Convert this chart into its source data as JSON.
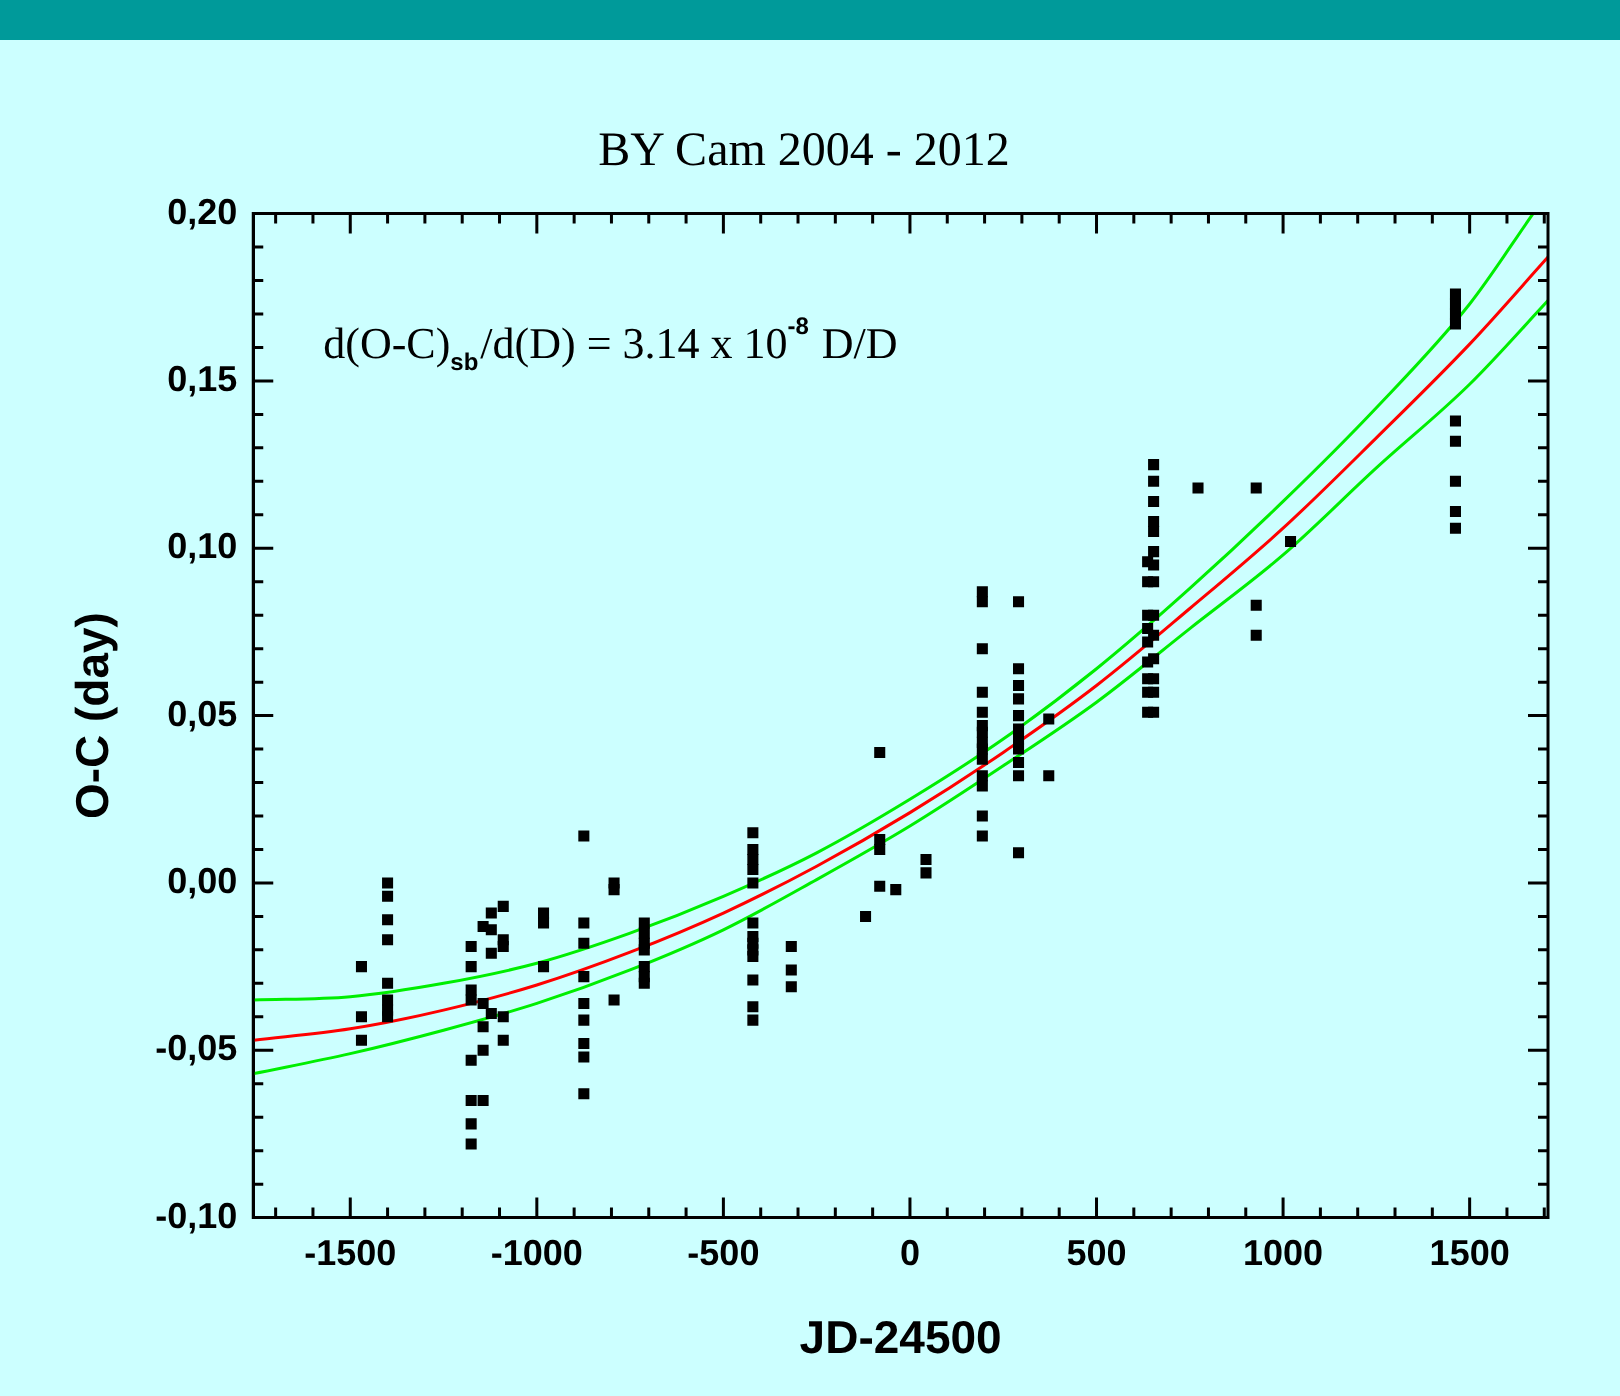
{
  "chart_data": {
    "type": "scatter",
    "title": "BY Cam 2004 - 2012",
    "xlabel": "JD-24500",
    "ylabel": "O-C (day)",
    "annotations": [
      "d(O-C)$_{sb}$/d(D) = 3.14 x 10$^{-8}$ D/D"
    ],
    "xlim": [
      -1760,
      1710
    ],
    "xticks": [
      {
        "value": -1700,
        "label": null
      },
      {
        "value": -1600,
        "label": null
      },
      -1500,
      {
        "value": -1400,
        "label": null
      },
      {
        "value": -1300,
        "label": null
      },
      {
        "value": -1200,
        "label": null
      },
      {
        "value": -1100,
        "label": null
      },
      -1000,
      {
        "value": -900,
        "label": null
      },
      {
        "value": -800,
        "label": null
      },
      {
        "value": -700,
        "label": null
      },
      {
        "value": -600,
        "label": null
      },
      -500,
      {
        "value": -400,
        "label": null
      },
      {
        "value": -300,
        "label": null
      },
      {
        "value": -200,
        "label": null
      },
      {
        "value": -100,
        "label": null
      },
      0,
      {
        "value": 100,
        "label": null
      },
      {
        "value": 200,
        "label": null
      },
      {
        "value": 300,
        "label": null
      },
      {
        "value": 400,
        "label": null
      },
      500,
      {
        "value": 600,
        "label": null
      },
      {
        "value": 700,
        "label": null
      },
      {
        "value": 800,
        "label": null
      },
      {
        "value": 900,
        "label": null
      },
      1000,
      {
        "value": 1100,
        "label": null
      },
      {
        "value": 1200,
        "label": null
      },
      {
        "value": 1300,
        "label": null
      },
      {
        "value": 1400,
        "label": null
      },
      1500,
      {
        "value": 1600,
        "label": null
      },
      {
        "value": 1700,
        "label": null
      }
    ],
    "ylim": [
      -0.1,
      0.2
    ],
    "yticks": [
      {
        "value": -0.1,
        "label": "-0,10"
      },
      {
        "value": -0.09,
        "label": null
      },
      {
        "value": -0.08,
        "label": null
      },
      {
        "value": -0.07,
        "label": null
      },
      {
        "value": -0.06,
        "label": null
      },
      {
        "value": -0.05,
        "label": "-0,05"
      },
      {
        "value": -0.04,
        "label": null
      },
      {
        "value": -0.03,
        "label": null
      },
      {
        "value": -0.02,
        "label": null
      },
      {
        "value": -0.01,
        "label": null
      },
      {
        "value": 0,
        "label": "0,00"
      },
      {
        "value": 0.01,
        "label": null
      },
      {
        "value": 0.02,
        "label": null
      },
      {
        "value": 0.03,
        "label": null
      },
      {
        "value": 0.04,
        "label": null
      },
      {
        "value": 0.05,
        "label": "0,05"
      },
      {
        "value": 0.06,
        "label": null
      },
      {
        "value": 0.07,
        "label": null
      },
      {
        "value": 0.08,
        "label": null
      },
      {
        "value": 0.09,
        "label": null
      },
      {
        "value": 0.1,
        "label": "0,10"
      },
      {
        "value": 0.11,
        "label": null
      },
      {
        "value": 0.12,
        "label": null
      },
      {
        "value": 0.13,
        "label": null
      },
      {
        "value": 0.14,
        "label": null
      },
      {
        "value": 0.15,
        "label": "0,15"
      },
      {
        "value": 0.16,
        "label": null
      },
      {
        "value": 0.17,
        "label": null
      },
      {
        "value": 0.18,
        "label": null
      },
      {
        "value": 0.19,
        "label": null
      },
      {
        "value": 0.2,
        "label": "0,20"
      }
    ],
    "marker": "square",
    "series": [
      {
        "color": "#000000",
        "x": [
          -1470,
          -1470,
          -1470,
          -1400,
          -1400,
          -1400,
          -1400,
          -1400,
          -1400,
          -1400,
          -1400,
          -1176,
          -1176,
          -1176,
          -1176,
          -1176,
          -1176,
          -1176,
          -1176,
          -1144,
          -1144,
          -1144,
          -1144,
          -1144,
          -1122,
          -1122,
          -1122,
          -1122,
          -1090,
          -1090,
          -1090,
          -1090,
          -1090,
          -982,
          -982,
          -982,
          -874,
          -874,
          -874,
          -874,
          -874,
          -874,
          -874,
          -874,
          -874,
          -793,
          -793,
          -793,
          -712,
          -712,
          -712,
          -712,
          -712,
          -712,
          -712,
          -421,
          -421,
          -421,
          -421,
          -421,
          -421,
          -421,
          -421,
          -421,
          -421,
          -421,
          -421,
          -421,
          -318,
          -318,
          -318,
          -119,
          -81,
          -81,
          -81,
          -81,
          -38,
          43,
          43,
          194,
          194,
          194,
          194,
          194,
          194,
          194,
          194,
          194,
          194,
          194,
          194,
          194,
          194,
          291,
          291,
          291,
          291,
          291,
          291,
          291,
          291,
          291,
          291,
          291,
          372,
          372,
          637,
          637,
          637,
          637,
          637,
          637,
          637,
          637,
          637,
          653,
          653,
          653,
          653,
          653,
          653,
          653,
          653,
          653,
          653,
          653,
          653,
          653,
          653,
          772,
          928,
          928,
          928,
          1020,
          1462,
          1462,
          1462,
          1462,
          1462,
          1462,
          1462,
          1462,
          1462
        ],
        "values": [
          -0.025,
          -0.04,
          -0.047,
          0.0,
          -0.004,
          -0.011,
          -0.017,
          -0.03,
          -0.035,
          -0.038,
          -0.04,
          -0.019,
          -0.025,
          -0.032,
          -0.035,
          -0.053,
          -0.065,
          -0.072,
          -0.078,
          -0.013,
          -0.036,
          -0.043,
          -0.05,
          -0.065,
          -0.009,
          -0.014,
          -0.021,
          -0.039,
          -0.007,
          -0.017,
          -0.019,
          -0.04,
          -0.047,
          -0.009,
          -0.012,
          -0.025,
          0.014,
          -0.012,
          -0.018,
          -0.028,
          -0.036,
          -0.041,
          -0.048,
          -0.052,
          -0.063,
          0.0,
          -0.002,
          -0.035,
          -0.012,
          -0.015,
          -0.018,
          -0.02,
          -0.025,
          -0.028,
          -0.03,
          0.015,
          0.01,
          0.007,
          0.004,
          0.0,
          -0.012,
          -0.016,
          -0.018,
          -0.02,
          -0.022,
          -0.029,
          -0.037,
          -0.041,
          -0.019,
          -0.026,
          -0.031,
          -0.01,
          0.039,
          0.013,
          0.01,
          -0.001,
          -0.002,
          0.007,
          0.003,
          0.087,
          0.084,
          0.07,
          0.057,
          0.051,
          0.047,
          0.045,
          0.042,
          0.04,
          0.037,
          0.032,
          0.029,
          0.02,
          0.014,
          0.084,
          0.064,
          0.059,
          0.055,
          0.05,
          0.046,
          0.043,
          0.04,
          0.036,
          0.032,
          0.009,
          0.049,
          0.032,
          0.096,
          0.09,
          0.08,
          0.076,
          0.072,
          0.066,
          0.061,
          0.057,
          0.051,
          0.125,
          0.12,
          0.114,
          0.108,
          0.105,
          0.099,
          0.095,
          0.09,
          0.08,
          0.074,
          0.067,
          0.061,
          0.057,
          0.051,
          0.118,
          0.118,
          0.083,
          0.074,
          0.102,
          0.176,
          0.173,
          0.17,
          0.167,
          0.138,
          0.132,
          0.12,
          0.111,
          0.106
        ]
      },
      {
        "type": "line",
        "color": "#00ee00",
        "marker": "none",
        "line_style": "solid",
        "x": [
          -1760,
          -1500,
          -1250,
          -1000,
          -750,
          -500,
          -250,
          0,
          250,
          500,
          750,
          1000,
          1250,
          1500,
          1670
        ],
        "values": [
          -0.035,
          -0.034,
          -0.03,
          -0.024,
          -0.015,
          -0.004,
          0.009,
          0.025,
          0.043,
          0.064,
          0.088,
          0.114,
          0.142,
          0.173,
          0.2
        ]
      },
      {
        "type": "line",
        "color": "#00ee00",
        "marker": "none",
        "line_style": "solid",
        "x": [
          -1760,
          -1500,
          -1250,
          -1000,
          -750,
          -500,
          -250,
          0,
          250,
          500,
          750,
          1000,
          1250,
          1500,
          1710
        ],
        "values": [
          -0.057,
          -0.051,
          -0.044,
          -0.036,
          -0.026,
          -0.014,
          0.001,
          0.017,
          0.035,
          0.054,
          0.076,
          0.098,
          0.124,
          0.149,
          0.174
        ]
      },
      {
        "type": "line",
        "color": "#ff0000",
        "marker": "none",
        "line_style": "solid",
        "x": [
          -1760,
          -1500,
          -1250,
          -1000,
          -750,
          -500,
          -250,
          0,
          250,
          500,
          750,
          1000,
          1250,
          1500,
          1710
        ],
        "values": [
          -0.047,
          -0.0436,
          -0.038,
          -0.0305,
          -0.0207,
          -0.009,
          0.005,
          0.021,
          0.039,
          0.059,
          0.082,
          0.106,
          0.133,
          0.161,
          0.187
        ]
      }
    ]
  }
}
